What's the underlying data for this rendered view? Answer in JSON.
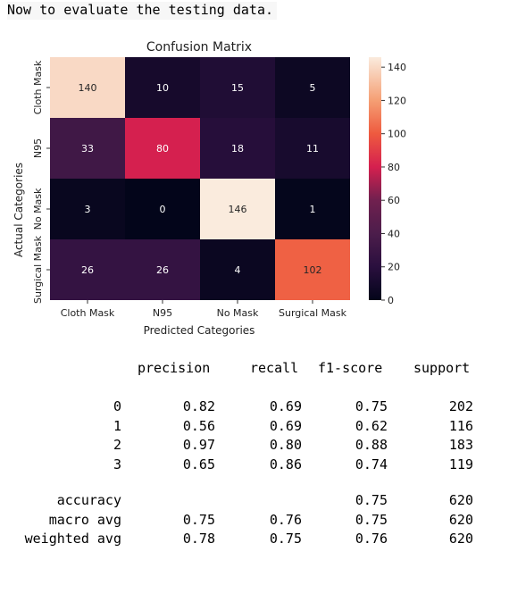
{
  "intro_text": "Now to evaluate the testing data.",
  "chart_data": {
    "type": "heatmap",
    "title": "Confusion Matrix",
    "xlabel": "Predicted Categories",
    "ylabel": "Actual Categories",
    "x_categories": [
      "Cloth Mask",
      "N95",
      "No Mask",
      "Surgical Mask"
    ],
    "y_categories": [
      "Cloth Mask",
      "N95",
      "No Mask",
      "Surgical Mask"
    ],
    "values": [
      [
        140,
        10,
        15,
        5
      ],
      [
        33,
        80,
        18,
        11
      ],
      [
        3,
        0,
        146,
        1
      ],
      [
        26,
        26,
        4,
        102
      ]
    ],
    "colorbar": {
      "min": 0,
      "max": 146,
      "ticks": [
        0,
        20,
        40,
        60,
        80,
        100,
        120,
        140
      ]
    },
    "colors": {
      "c0": "#03051a",
      "c20": "#2a0f3e",
      "c40": "#4c1d4b",
      "c60": "#70204f",
      "c80": "#d5204f",
      "c100": "#ee5a3f",
      "c120": "#f59f74",
      "c146": "#faebdd"
    }
  },
  "report": {
    "headers": [
      "precision",
      "recall",
      "f1-score",
      "support"
    ],
    "rows": [
      {
        "label": "0",
        "precision": "0.82",
        "recall": "0.69",
        "f1": "0.75",
        "support": "202"
      },
      {
        "label": "1",
        "precision": "0.56",
        "recall": "0.69",
        "f1": "0.62",
        "support": "116"
      },
      {
        "label": "2",
        "precision": "0.97",
        "recall": "0.80",
        "f1": "0.88",
        "support": "183"
      },
      {
        "label": "3",
        "precision": "0.65",
        "recall": "0.86",
        "f1": "0.74",
        "support": "119"
      }
    ],
    "summary": [
      {
        "label": "accuracy",
        "precision": "",
        "recall": "",
        "f1": "0.75",
        "support": "620"
      },
      {
        "label": "macro avg",
        "precision": "0.75",
        "recall": "0.76",
        "f1": "0.75",
        "support": "620"
      },
      {
        "label": "weighted avg",
        "precision": "0.78",
        "recall": "0.75",
        "f1": "0.76",
        "support": "620"
      }
    ]
  }
}
